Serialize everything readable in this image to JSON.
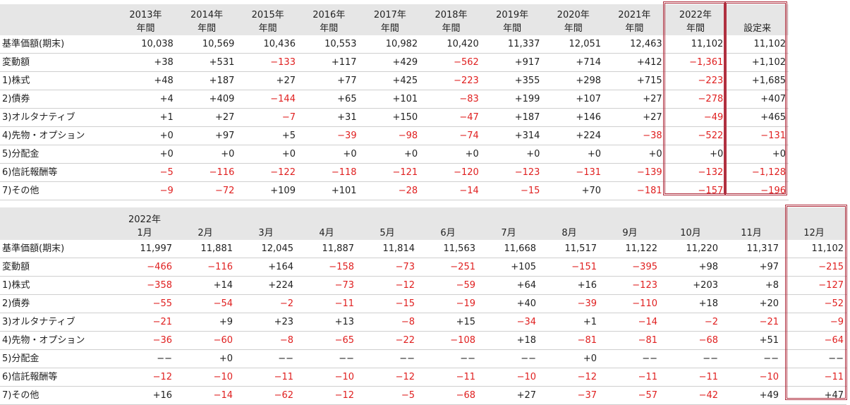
{
  "annual_table": {
    "columns": [
      [
        "2013年",
        "年間"
      ],
      [
        "2014年",
        "年間"
      ],
      [
        "2015年",
        "年間"
      ],
      [
        "2016年",
        "年間"
      ],
      [
        "2017年",
        "年間"
      ],
      [
        "2018年",
        "年間"
      ],
      [
        "2019年",
        "年間"
      ],
      [
        "2020年",
        "年間"
      ],
      [
        "2021年",
        "年間"
      ],
      [
        "2022年",
        "年間"
      ],
      [
        "",
        "設定来"
      ]
    ],
    "rows": [
      {
        "label": "基準価額(期末)",
        "values": [
          "10,038",
          "10,569",
          "10,436",
          "10,553",
          "10,982",
          "10,420",
          "11,337",
          "12,051",
          "12,463",
          "11,102",
          "11,102"
        ]
      },
      {
        "label": "変動額",
        "values": [
          "+38",
          "+531",
          "−133",
          "+117",
          "+429",
          "−562",
          "+917",
          "+714",
          "+412",
          "−1,361",
          "+1,102"
        ]
      },
      {
        "label": "1)株式",
        "values": [
          "+48",
          "+187",
          "+27",
          "+77",
          "+425",
          "−223",
          "+355",
          "+298",
          "+715",
          "−223",
          "+1,685"
        ]
      },
      {
        "label": "2)債券",
        "values": [
          "+4",
          "+409",
          "−144",
          "+65",
          "+101",
          "−83",
          "+199",
          "+107",
          "+27",
          "−278",
          "+407"
        ]
      },
      {
        "label": "3)オルタナティブ",
        "values": [
          "+1",
          "+27",
          "−7",
          "+31",
          "+150",
          "−47",
          "+187",
          "+146",
          "+27",
          "−49",
          "+465"
        ]
      },
      {
        "label": "4)先物・オプション",
        "values": [
          "+0",
          "+97",
          "+5",
          "−39",
          "−98",
          "−74",
          "+314",
          "+224",
          "−38",
          "−522",
          "−131"
        ]
      },
      {
        "label": "5)分配金",
        "values": [
          "+0",
          "+0",
          "+0",
          "+0",
          "+0",
          "+0",
          "+0",
          "+0",
          "+0",
          "+0",
          "+0"
        ]
      },
      {
        "label": "6)信託報酬等",
        "values": [
          "−5",
          "−116",
          "−122",
          "−118",
          "−121",
          "−120",
          "−123",
          "−131",
          "−139",
          "−132",
          "−1,128"
        ]
      },
      {
        "label": "7)その他",
        "values": [
          "−9",
          "−72",
          "+109",
          "+101",
          "−28",
          "−14",
          "−15",
          "+70",
          "−181",
          "−157",
          "−196"
        ]
      }
    ]
  },
  "monthly_table": {
    "columns": [
      [
        "2022年",
        "1月"
      ],
      [
        "",
        "2月"
      ],
      [
        "",
        "3月"
      ],
      [
        "",
        "4月"
      ],
      [
        "",
        "5月"
      ],
      [
        "",
        "6月"
      ],
      [
        "",
        "7月"
      ],
      [
        "",
        "8月"
      ],
      [
        "",
        "9月"
      ],
      [
        "",
        "10月"
      ],
      [
        "",
        "11月"
      ],
      [
        "",
        "12月"
      ]
    ],
    "rows": [
      {
        "label": "基準価額(期末)",
        "values": [
          "11,997",
          "11,881",
          "12,045",
          "11,887",
          "11,814",
          "11,563",
          "11,668",
          "11,517",
          "11,122",
          "11,220",
          "11,317",
          "11,102"
        ]
      },
      {
        "label": "変動額",
        "values": [
          "−466",
          "−116",
          "+164",
          "−158",
          "−73",
          "−251",
          "+105",
          "−151",
          "−395",
          "+98",
          "+97",
          "−215"
        ]
      },
      {
        "label": "1)株式",
        "values": [
          "−358",
          "+14",
          "+224",
          "−73",
          "−12",
          "−59",
          "+64",
          "+16",
          "−123",
          "+203",
          "+8",
          "−127"
        ]
      },
      {
        "label": "2)債券",
        "values": [
          "−55",
          "−54",
          "−2",
          "−11",
          "−15",
          "−19",
          "+40",
          "−39",
          "−110",
          "+18",
          "+20",
          "−52"
        ]
      },
      {
        "label": "3)オルタナティブ",
        "values": [
          "−21",
          "+9",
          "+23",
          "+13",
          "−8",
          "+15",
          "−34",
          "+1",
          "−14",
          "−2",
          "−21",
          "−9"
        ]
      },
      {
        "label": "4)先物・オプション",
        "values": [
          "−36",
          "−60",
          "−8",
          "−65",
          "−22",
          "−108",
          "+18",
          "−81",
          "−81",
          "−68",
          "+51",
          "−64"
        ]
      },
      {
        "label": "5)分配金",
        "values": [
          "−−",
          "+0",
          "−−",
          "−−",
          "−−",
          "−−",
          "−−",
          "+0",
          "−−",
          "−−",
          "−−",
          "−−"
        ]
      },
      {
        "label": "6)信託報酬等",
        "values": [
          "−12",
          "−10",
          "−11",
          "−10",
          "−12",
          "−11",
          "−10",
          "−12",
          "−11",
          "−11",
          "−10",
          "−11"
        ]
      },
      {
        "label": "7)その他",
        "values": [
          "+16",
          "−14",
          "−62",
          "−12",
          "−5",
          "−68",
          "+27",
          "−37",
          "−57",
          "−42",
          "+49",
          "+47"
        ]
      }
    ]
  },
  "colors": {
    "negative": "#e02020",
    "header_bg": "#e6e6e6",
    "highlight_border": "#b03040"
  }
}
